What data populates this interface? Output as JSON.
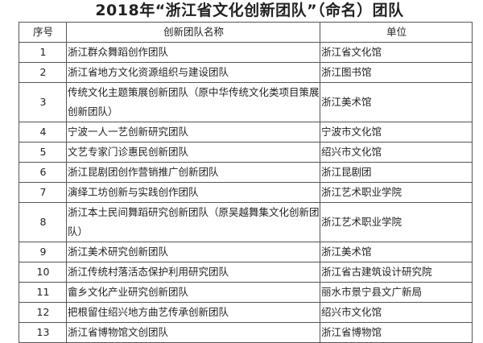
{
  "title": "2018年“浙江省文化创新团队”（命名）团队",
  "headers": [
    "序号",
    "创新团队名称",
    "单位"
  ],
  "rows": [
    {
      "no": "1",
      "name": "浙江群众舞蹈创作团队",
      "unit": "浙江省文化馆"
    },
    {
      "no": "2",
      "name": "浙江省地方文化资源组织与建设团队",
      "unit": "浙江图书馆"
    },
    {
      "no": "3",
      "name": "传统文化主题策展创新团队（原中华传统文化类项目策展创新团队）",
      "unit": "浙江美术馆"
    },
    {
      "no": "4",
      "name": "宁波一人一艺创新研究团队",
      "unit": "宁波市文化馆"
    },
    {
      "no": "5",
      "name": "文艺专家门诊惠民创新团队",
      "unit": "绍兴市文化馆"
    },
    {
      "no": "6",
      "name": "浙江昆剧团创作营销推广创新团队",
      "unit": "浙江昆剧团"
    },
    {
      "no": "7",
      "name": "演绎工坊创新与实践创作团队",
      "unit": "浙江艺术职业学院"
    },
    {
      "no": "8",
      "name": "浙江本土民间舞蹈研究创新团队（原吴越舞集文化创新团队）",
      "unit": "浙江艺术职业学院"
    },
    {
      "no": "9",
      "name": "浙江美术研究创新团队",
      "unit": "浙江美术馆"
    },
    {
      "no": "10",
      "name": "浙江传统村落活态保护利用研究团队",
      "unit": "浙江省古建筑设计研究院"
    },
    {
      "no": "11",
      "name": "畲乡文化产业研究创新团队",
      "unit": "丽水市景宁县文广新局"
    },
    {
      "no": "12",
      "name": "把根留住绍兴地方曲艺传承创新团队",
      "unit": "绍兴市文化馆"
    },
    {
      "no": "13",
      "name": "浙江省博物馆文创团队",
      "unit": "浙江省博物馆"
    }
  ]
}
